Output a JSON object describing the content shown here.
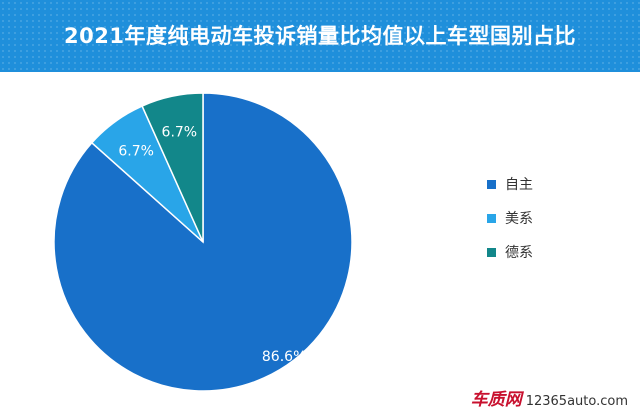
{
  "title": "2021年度纯电动车投诉销量比均值以上车型国别占比",
  "chart_data": {
    "type": "pie",
    "title": "2021年度纯电动车投诉销量比均值以上车型国别占比",
    "slices": [
      {
        "name": "自主",
        "value": 86.6,
        "label": "86.6%",
        "color": "#1870c9"
      },
      {
        "name": "美系",
        "value": 6.7,
        "label": "6.7%",
        "color": "#29a5e8"
      },
      {
        "name": "德系",
        "value": 6.7,
        "label": "6.7%",
        "color": "#12878a"
      }
    ],
    "start": "12 o'clock",
    "direction": "clockwise",
    "legend_position": "right"
  },
  "watermark": {
    "logo": "车质网",
    "url": "12365auto.com"
  }
}
